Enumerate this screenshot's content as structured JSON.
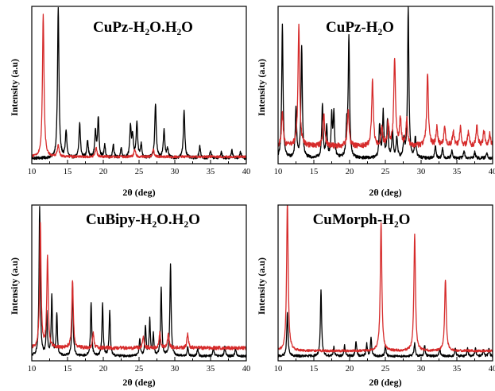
{
  "chart_data": [
    {
      "type": "line",
      "title": "CuPz-H₂O.H₂O",
      "xlabel": "2θ (deg)",
      "ylabel": "Intensity (a.u)",
      "xlim": [
        10,
        40
      ],
      "x_ticks": [
        "10",
        "15",
        "20",
        "25",
        "30",
        "35",
        "40"
      ],
      "y_ticks": false,
      "series": [
        {
          "color": "#000000",
          "baseline": 0.02,
          "noise": 0.01,
          "width": 0.12,
          "peaks": [
            [
              13.7,
              1.0
            ],
            [
              14.8,
              0.18
            ],
            [
              16.7,
              0.23
            ],
            [
              17.8,
              0.12
            ],
            [
              18.9,
              0.17
            ],
            [
              19.3,
              0.26
            ],
            [
              20.2,
              0.08
            ],
            [
              21.4,
              0.09
            ],
            [
              22.5,
              0.06
            ],
            [
              23.8,
              0.2
            ],
            [
              24.1,
              0.14
            ],
            [
              24.7,
              0.24
            ],
            [
              25.3,
              0.09
            ],
            [
              27.3,
              0.36
            ],
            [
              28.5,
              0.19
            ],
            [
              29.0,
              0.06
            ],
            [
              31.3,
              0.32
            ],
            [
              33.5,
              0.08
            ],
            [
              35.0,
              0.05
            ],
            [
              36.5,
              0.04
            ],
            [
              38.0,
              0.05
            ],
            [
              39.2,
              0.04
            ]
          ]
        },
        {
          "color": "#d62b2b",
          "baseline": 0.03,
          "noise": 0.008,
          "width": 0.13,
          "peaks": [
            [
              11.6,
              0.94
            ],
            [
              13.7,
              0.08
            ],
            [
              19.0,
              0.06
            ],
            [
              24.4,
              0.05
            ],
            [
              27.0,
              0.05
            ]
          ]
        }
      ]
    },
    {
      "type": "line",
      "title": "CuPz-H₂O",
      "xlabel": "2θ (deg)",
      "ylabel": "Intensity (a.u)",
      "xlim": [
        10,
        40
      ],
      "x_ticks": [
        "10",
        "15",
        "20",
        "25",
        "30",
        "35",
        "40"
      ],
      "y_ticks": false,
      "series": [
        {
          "color": "#000000",
          "baseline": 0.02,
          "noise": 0.01,
          "width": 0.11,
          "peaks": [
            [
              10.6,
              0.88
            ],
            [
              12.5,
              0.33
            ],
            [
              13.3,
              0.74
            ],
            [
              16.2,
              0.35
            ],
            [
              16.8,
              0.2
            ],
            [
              17.5,
              0.27
            ],
            [
              17.8,
              0.28
            ],
            [
              19.6,
              0.2
            ],
            [
              19.9,
              0.8
            ],
            [
              24.2,
              0.22
            ],
            [
              24.7,
              0.3
            ],
            [
              25.3,
              0.25
            ],
            [
              26.0,
              0.18
            ],
            [
              26.6,
              0.14
            ],
            [
              27.6,
              0.12
            ],
            [
              28.2,
              1.0
            ],
            [
              29.2,
              0.14
            ],
            [
              32.0,
              0.08
            ],
            [
              33.0,
              0.06
            ],
            [
              34.3,
              0.05
            ],
            [
              36.0,
              0.05
            ],
            [
              37.5,
              0.04
            ],
            [
              39.2,
              0.04
            ]
          ]
        },
        {
          "color": "#d62b2b",
          "baseline": 0.1,
          "noise": 0.018,
          "width": 0.14,
          "peaks": [
            [
              10.6,
              0.22
            ],
            [
              12.9,
              0.8
            ],
            [
              16.4,
              0.22
            ],
            [
              19.8,
              0.24
            ],
            [
              23.2,
              0.43
            ],
            [
              24.5,
              0.12
            ],
            [
              25.4,
              0.15
            ],
            [
              26.3,
              0.58
            ],
            [
              27.1,
              0.18
            ],
            [
              28.0,
              0.17
            ],
            [
              30.9,
              0.48
            ],
            [
              32.2,
              0.12
            ],
            [
              33.3,
              0.12
            ],
            [
              34.5,
              0.1
            ],
            [
              35.5,
              0.12
            ],
            [
              36.6,
              0.09
            ],
            [
              37.8,
              0.13
            ],
            [
              38.8,
              0.1
            ],
            [
              39.6,
              0.08
            ]
          ]
        }
      ]
    },
    {
      "type": "line",
      "title": "CuBipy-H₂O.H₂O",
      "xlabel": "2θ (deg)",
      "ylabel": "Intensity (a.u)",
      "xlim": [
        10,
        40
      ],
      "x_ticks": [
        "10",
        "15",
        "20",
        "25",
        "30",
        "35",
        "40"
      ],
      "y_ticks": false,
      "series": [
        {
          "color": "#000000",
          "baseline": 0.015,
          "noise": 0.008,
          "width": 0.1,
          "peaks": [
            [
              11.1,
              1.0
            ],
            [
              12.1,
              0.29
            ],
            [
              12.8,
              0.4
            ],
            [
              13.5,
              0.28
            ],
            [
              15.7,
              0.48
            ],
            [
              18.3,
              0.36
            ],
            [
              19.9,
              0.35
            ],
            [
              20.9,
              0.3
            ],
            [
              25.1,
              0.12
            ],
            [
              25.9,
              0.2
            ],
            [
              26.5,
              0.24
            ],
            [
              27.0,
              0.14
            ],
            [
              28.1,
              0.46
            ],
            [
              29.4,
              0.62
            ],
            [
              31.8,
              0.06
            ],
            [
              33.2,
              0.05
            ],
            [
              35.4,
              0.05
            ],
            [
              37.0,
              0.06
            ],
            [
              38.5,
              0.05
            ]
          ]
        },
        {
          "color": "#d62b2b",
          "baseline": 0.07,
          "noise": 0.012,
          "width": 0.12,
          "peaks": [
            [
              11.2,
              0.82
            ],
            [
              12.2,
              0.61
            ],
            [
              15.7,
              0.46
            ],
            [
              18.6,
              0.1
            ],
            [
              25.6,
              0.08
            ],
            [
              27.9,
              0.1
            ],
            [
              29.1,
              0.1
            ],
            [
              31.8,
              0.1
            ]
          ]
        }
      ]
    },
    {
      "type": "line",
      "title": "CuMorph-H₂O",
      "xlabel": "2θ (deg)",
      "ylabel": "Intensity (a.u)",
      "xlim": [
        10,
        40
      ],
      "x_ticks": [
        "10",
        "15",
        "20",
        "25",
        "30",
        "35",
        "40"
      ],
      "y_ticks": false,
      "series": [
        {
          "color": "#000000",
          "baseline": 0.015,
          "noise": 0.008,
          "width": 0.1,
          "peaks": [
            [
              11.3,
              0.3
            ],
            [
              16.0,
              0.45
            ],
            [
              17.8,
              0.06
            ],
            [
              19.3,
              0.07
            ],
            [
              20.9,
              0.1
            ],
            [
              22.4,
              0.08
            ],
            [
              23.0,
              0.12
            ],
            [
              25.0,
              0.07
            ],
            [
              29.1,
              0.09
            ],
            [
              30.5,
              0.07
            ],
            [
              32.6,
              0.05
            ],
            [
              34.8,
              0.05
            ],
            [
              36.5,
              0.05
            ],
            [
              37.6,
              0.05
            ],
            [
              38.7,
              0.04
            ],
            [
              39.5,
              0.05
            ]
          ]
        },
        {
          "color": "#d62b2b",
          "baseline": 0.05,
          "noise": 0.008,
          "width": 0.13,
          "peaks": [
            [
              11.3,
              1.0
            ],
            [
              24.4,
              0.86
            ],
            [
              29.1,
              0.78
            ],
            [
              33.4,
              0.48
            ]
          ]
        }
      ]
    }
  ]
}
